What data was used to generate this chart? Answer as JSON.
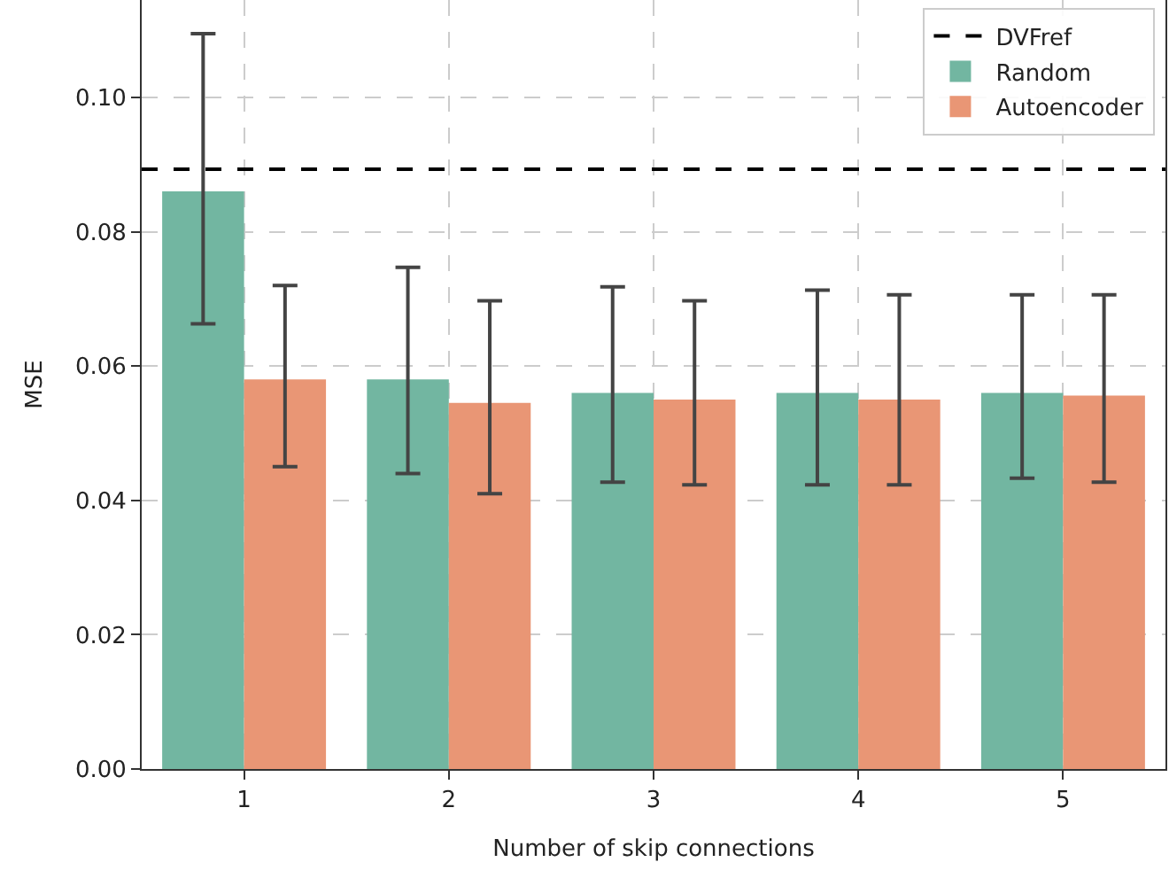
{
  "chart_data": {
    "type": "bar",
    "xlabel": "Number of skip connections",
    "ylabel": "MSE",
    "categories": [
      "1",
      "2",
      "3",
      "4",
      "5"
    ],
    "series": [
      {
        "name": "Random",
        "color": "#72b6a1",
        "values": [
          0.086,
          0.058,
          0.056,
          0.056,
          0.056
        ],
        "errors": [
          [
            0.0663,
            0.1095
          ],
          [
            0.044,
            0.0747
          ],
          [
            0.0427,
            0.0718
          ],
          [
            0.0423,
            0.0713
          ],
          [
            0.0433,
            0.0706
          ]
        ]
      },
      {
        "name": "Autoencoder",
        "color": "#e99675",
        "values": [
          0.058,
          0.0545,
          0.055,
          0.055,
          0.0556
        ],
        "errors": [
          [
            0.045,
            0.072
          ],
          [
            0.041,
            0.0697
          ],
          [
            0.0423,
            0.0697
          ],
          [
            0.0423,
            0.0706
          ],
          [
            0.0427,
            0.0706
          ]
        ]
      }
    ],
    "ref_lines": [
      {
        "axis": "y",
        "value": 0.0893,
        "label": "DVFref",
        "color": "#000000",
        "line_style": "dashed"
      }
    ],
    "ylim": [
      0,
      0.1145
    ],
    "yticks": [
      {
        "value": 0,
        "label": "0.00"
      },
      {
        "value": 0.02,
        "label": "0.02"
      },
      {
        "value": 0.04,
        "label": "0.04"
      },
      {
        "value": 0.06,
        "label": "0.06"
      },
      {
        "value": 0.08,
        "label": "0.08"
      },
      {
        "value": 0.1,
        "label": "0.10"
      }
    ],
    "grid": true,
    "legend": "top right"
  }
}
